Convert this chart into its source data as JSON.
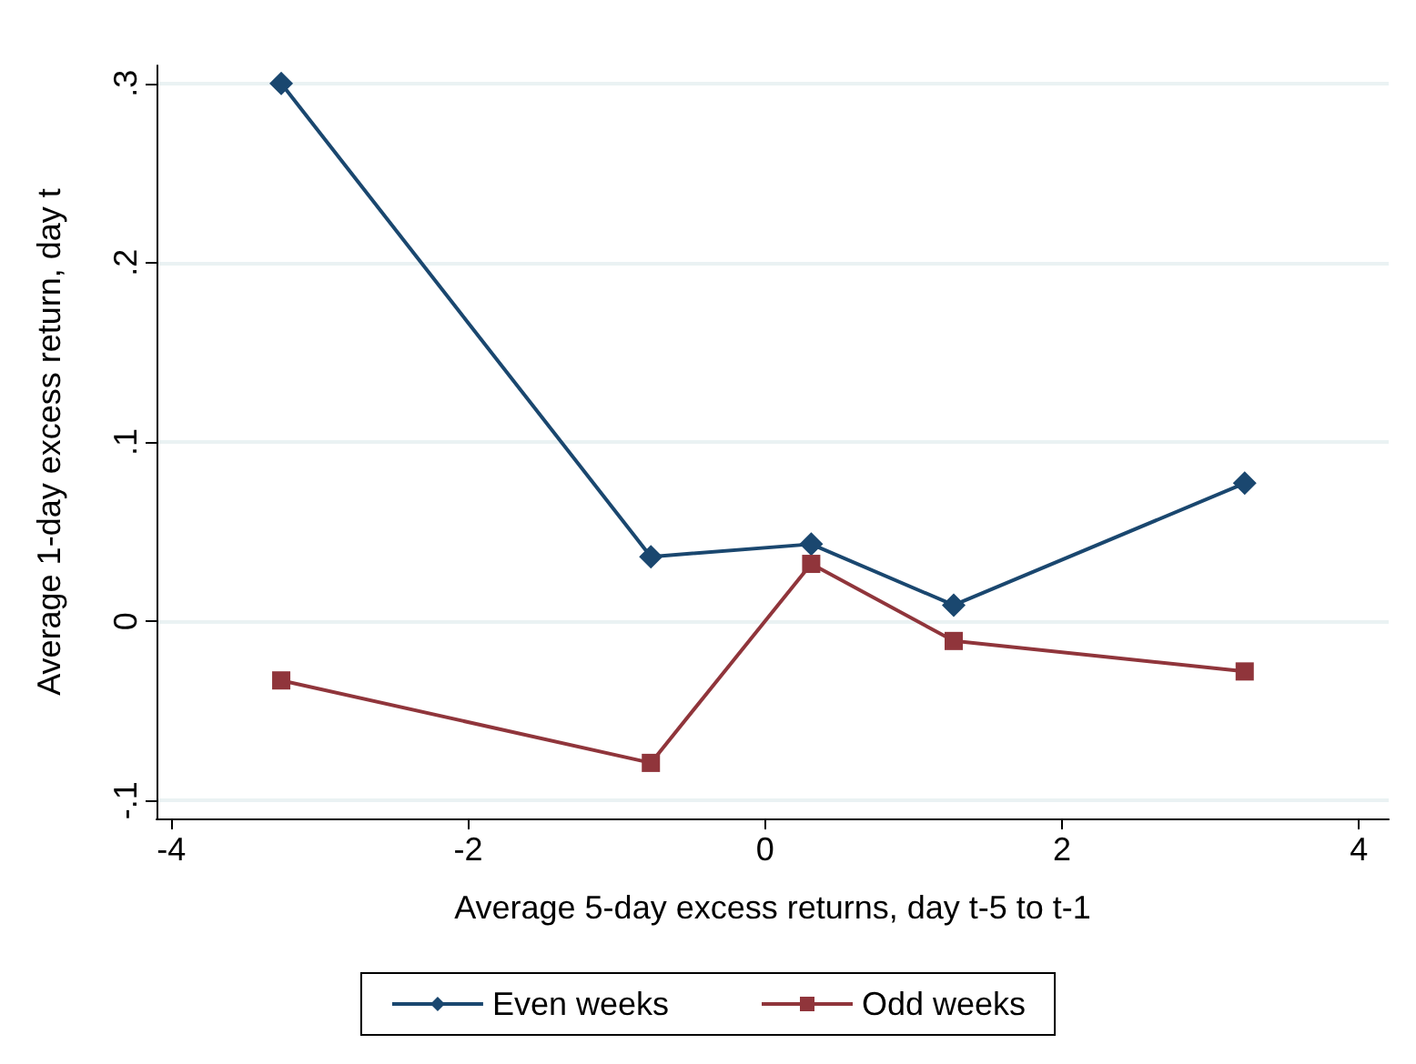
{
  "chart_data": {
    "type": "line",
    "xlabel": "Average 5-day excess returns, day t-5 to t-1",
    "ylabel": "Average 1-day excess return, day t",
    "xlim": [
      -4.1,
      4.2
    ],
    "xticks": [
      -4,
      -2,
      0,
      2,
      4
    ],
    "ylim": [
      -0.11,
      0.31
    ],
    "yticks": [
      {
        "value": -0.1,
        "label": "-.1"
      },
      0,
      {
        "value": 0.1,
        "label": ".1"
      },
      {
        "value": 0.2,
        "label": ".2"
      },
      {
        "value": 0.3,
        "label": ".3"
      }
    ],
    "grid": "y",
    "legend": "bottom",
    "series": [
      {
        "name": "Even weeks",
        "color": "#1a476f",
        "marker": "diamond",
        "x": [
          -3.26,
          -0.77,
          0.31,
          1.27,
          3.23
        ],
        "values": [
          0.3,
          0.036,
          0.043,
          0.009,
          0.077
        ]
      },
      {
        "name": "Odd weeks",
        "color": "#90353b",
        "marker": "square",
        "x": [
          -3.26,
          -0.77,
          0.31,
          1.27,
          3.23
        ],
        "values": [
          -0.033,
          -0.079,
          0.032,
          -0.011,
          -0.028
        ]
      }
    ]
  }
}
